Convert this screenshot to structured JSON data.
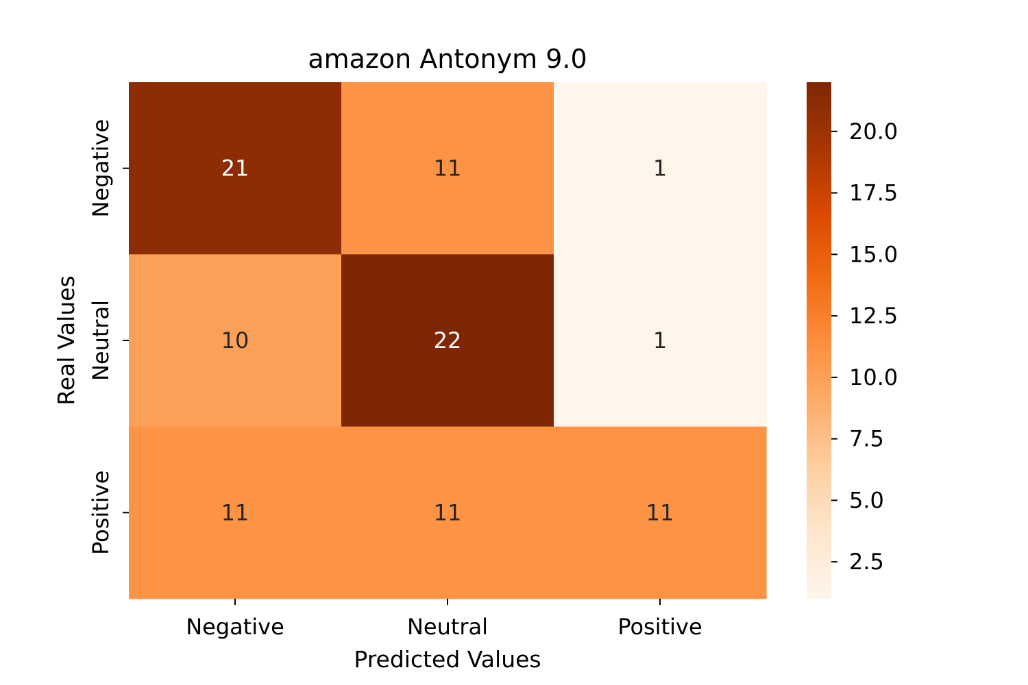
{
  "chart_data": {
    "type": "heatmap",
    "title": "amazon Antonym 9.0",
    "xlabel": "Predicted Values",
    "ylabel": "Real Values",
    "x_categories": [
      "Negative",
      "Neutral",
      "Positive"
    ],
    "y_categories": [
      "Negative",
      "Neutral",
      "Positive"
    ],
    "values": [
      [
        21,
        11,
        1
      ],
      [
        10,
        22,
        1
      ],
      [
        11,
        11,
        11
      ]
    ],
    "colormap": "Oranges",
    "color_range": [
      1,
      22
    ],
    "colorbar_ticks": [
      "2.5",
      "5.0",
      "7.5",
      "10.0",
      "12.5",
      "15.0",
      "17.5",
      "20.0"
    ],
    "colorbar_tick_values": [
      2.5,
      5.0,
      7.5,
      10.0,
      12.5,
      15.0,
      17.5,
      20.0
    ],
    "colors": {
      "low": "#fff5eb",
      "high": "#7f2704",
      "text_dark": "#262626",
      "text_light": "#ffffff"
    }
  }
}
